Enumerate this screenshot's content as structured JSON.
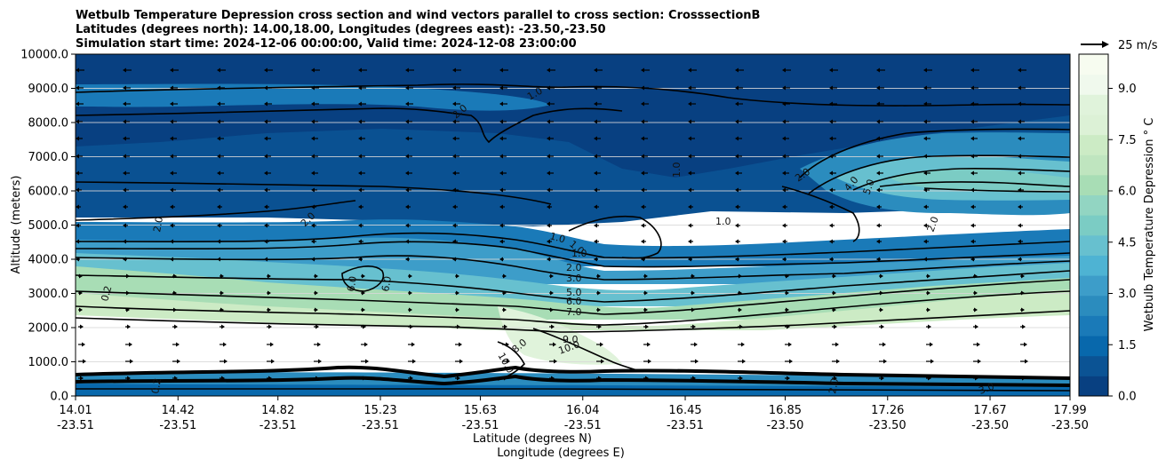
{
  "chart_data": {
    "type": "contourf_cross_section",
    "title_lines": [
      "Wetbulb Temperature Depression cross section and wind vectors parallel to cross section: CrosssectionB",
      "Latitudes (degrees north): 14.00,18.00, Longitudes (degrees east): -23.50,-23.50",
      "Simulation start time: 2024-12-06 00:00:00, Valid time: 2024-12-08 23:00:00"
    ],
    "ylabel": "Altitude (meters)",
    "xlabel_lat": "Latitude (degrees N)",
    "xlabel_lon": "Longitude (degrees E)",
    "ylim": [
      0,
      10000
    ],
    "y_ticks": [
      "0.0",
      "1000.0",
      "2000.0",
      "3000.0",
      "4000.0",
      "5000.0",
      "6000.0",
      "7000.0",
      "8000.0",
      "9000.0",
      "10000.0"
    ],
    "y_tick_values": [
      0,
      1000,
      2000,
      3000,
      4000,
      5000,
      6000,
      7000,
      8000,
      9000,
      10000
    ],
    "xlim": [
      14.01,
      17.99
    ],
    "x_tick_values": [
      14.01,
      14.42,
      14.82,
      15.23,
      15.63,
      16.04,
      16.45,
      16.85,
      17.26,
      17.67,
      17.99
    ],
    "x_ticks_lat": [
      "14.01",
      "14.42",
      "14.82",
      "15.23",
      "15.63",
      "16.04",
      "16.45",
      "16.85",
      "17.26",
      "17.67",
      "17.99"
    ],
    "x_ticks_lon": [
      "-23.51",
      "-23.51",
      "-23.51",
      "-23.51",
      "-23.51",
      "-23.51",
      "-23.51",
      "-23.50",
      "-23.50",
      "-23.50",
      "-23.50"
    ],
    "colorbar": {
      "label": "Wetbulb Temperature Depression $^\\circ$C",
      "label_text": "Wetbulb Temperature Depression ° C",
      "range": [
        0,
        10
      ],
      "ticks": [
        "0.0",
        "1.5",
        "3.0",
        "4.5",
        "6.0",
        "7.5",
        "9.0"
      ],
      "tick_values": [
        0,
        1.5,
        3.0,
        4.5,
        6.0,
        7.5,
        9.0
      ],
      "colors": [
        "#084081",
        "#0b5394",
        "#0868ac",
        "#1a7ab8",
        "#2b8cbe",
        "#3d9dc9",
        "#4eb3d3",
        "#67c0cf",
        "#7bccc4",
        "#92d5c2",
        "#a8ddb5",
        "#bfe5bf",
        "#ccebc5",
        "#dcf1d6",
        "#e0f3db",
        "#f0f9ed",
        "#f7fcf0"
      ]
    },
    "quiver_key": {
      "label": "25 m/s",
      "speed": 25
    },
    "contour_labels": [
      "1.0",
      "2.0",
      "1.0",
      "2.0",
      "2.0",
      "1.0",
      "2.0",
      "4.0",
      "5.0",
      "2.0",
      "1.0",
      "1.0",
      "1.0",
      "2.0",
      "3.0",
      "5.0",
      "6.0",
      "7.0",
      "9.0",
      "10.0",
      "6.0",
      "6.0",
      "0.2",
      "0.2",
      "2.0",
      "3.0",
      "10.0",
      "8.0"
    ]
  }
}
